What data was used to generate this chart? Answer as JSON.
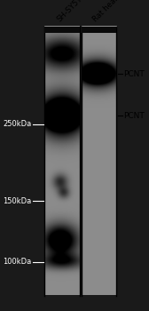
{
  "fig_bg": "#1a1a1a",
  "lane_bg1": "#888888",
  "lane_bg2": "#999999",
  "lane1_label": "SH-SY5Y",
  "lane2_label": "Rat heart",
  "mw_labels": [
    "250kDa",
    "150kDa",
    "100kDa"
  ],
  "mw_kda": [
    250,
    150,
    100
  ],
  "pcnt_label1": "PCNT",
  "pcnt_label2": "PCNT",
  "mw_fontsize": 6.0,
  "label_fontsize": 6.5,
  "mw_min_kda": 80,
  "mw_max_kda": 480
}
